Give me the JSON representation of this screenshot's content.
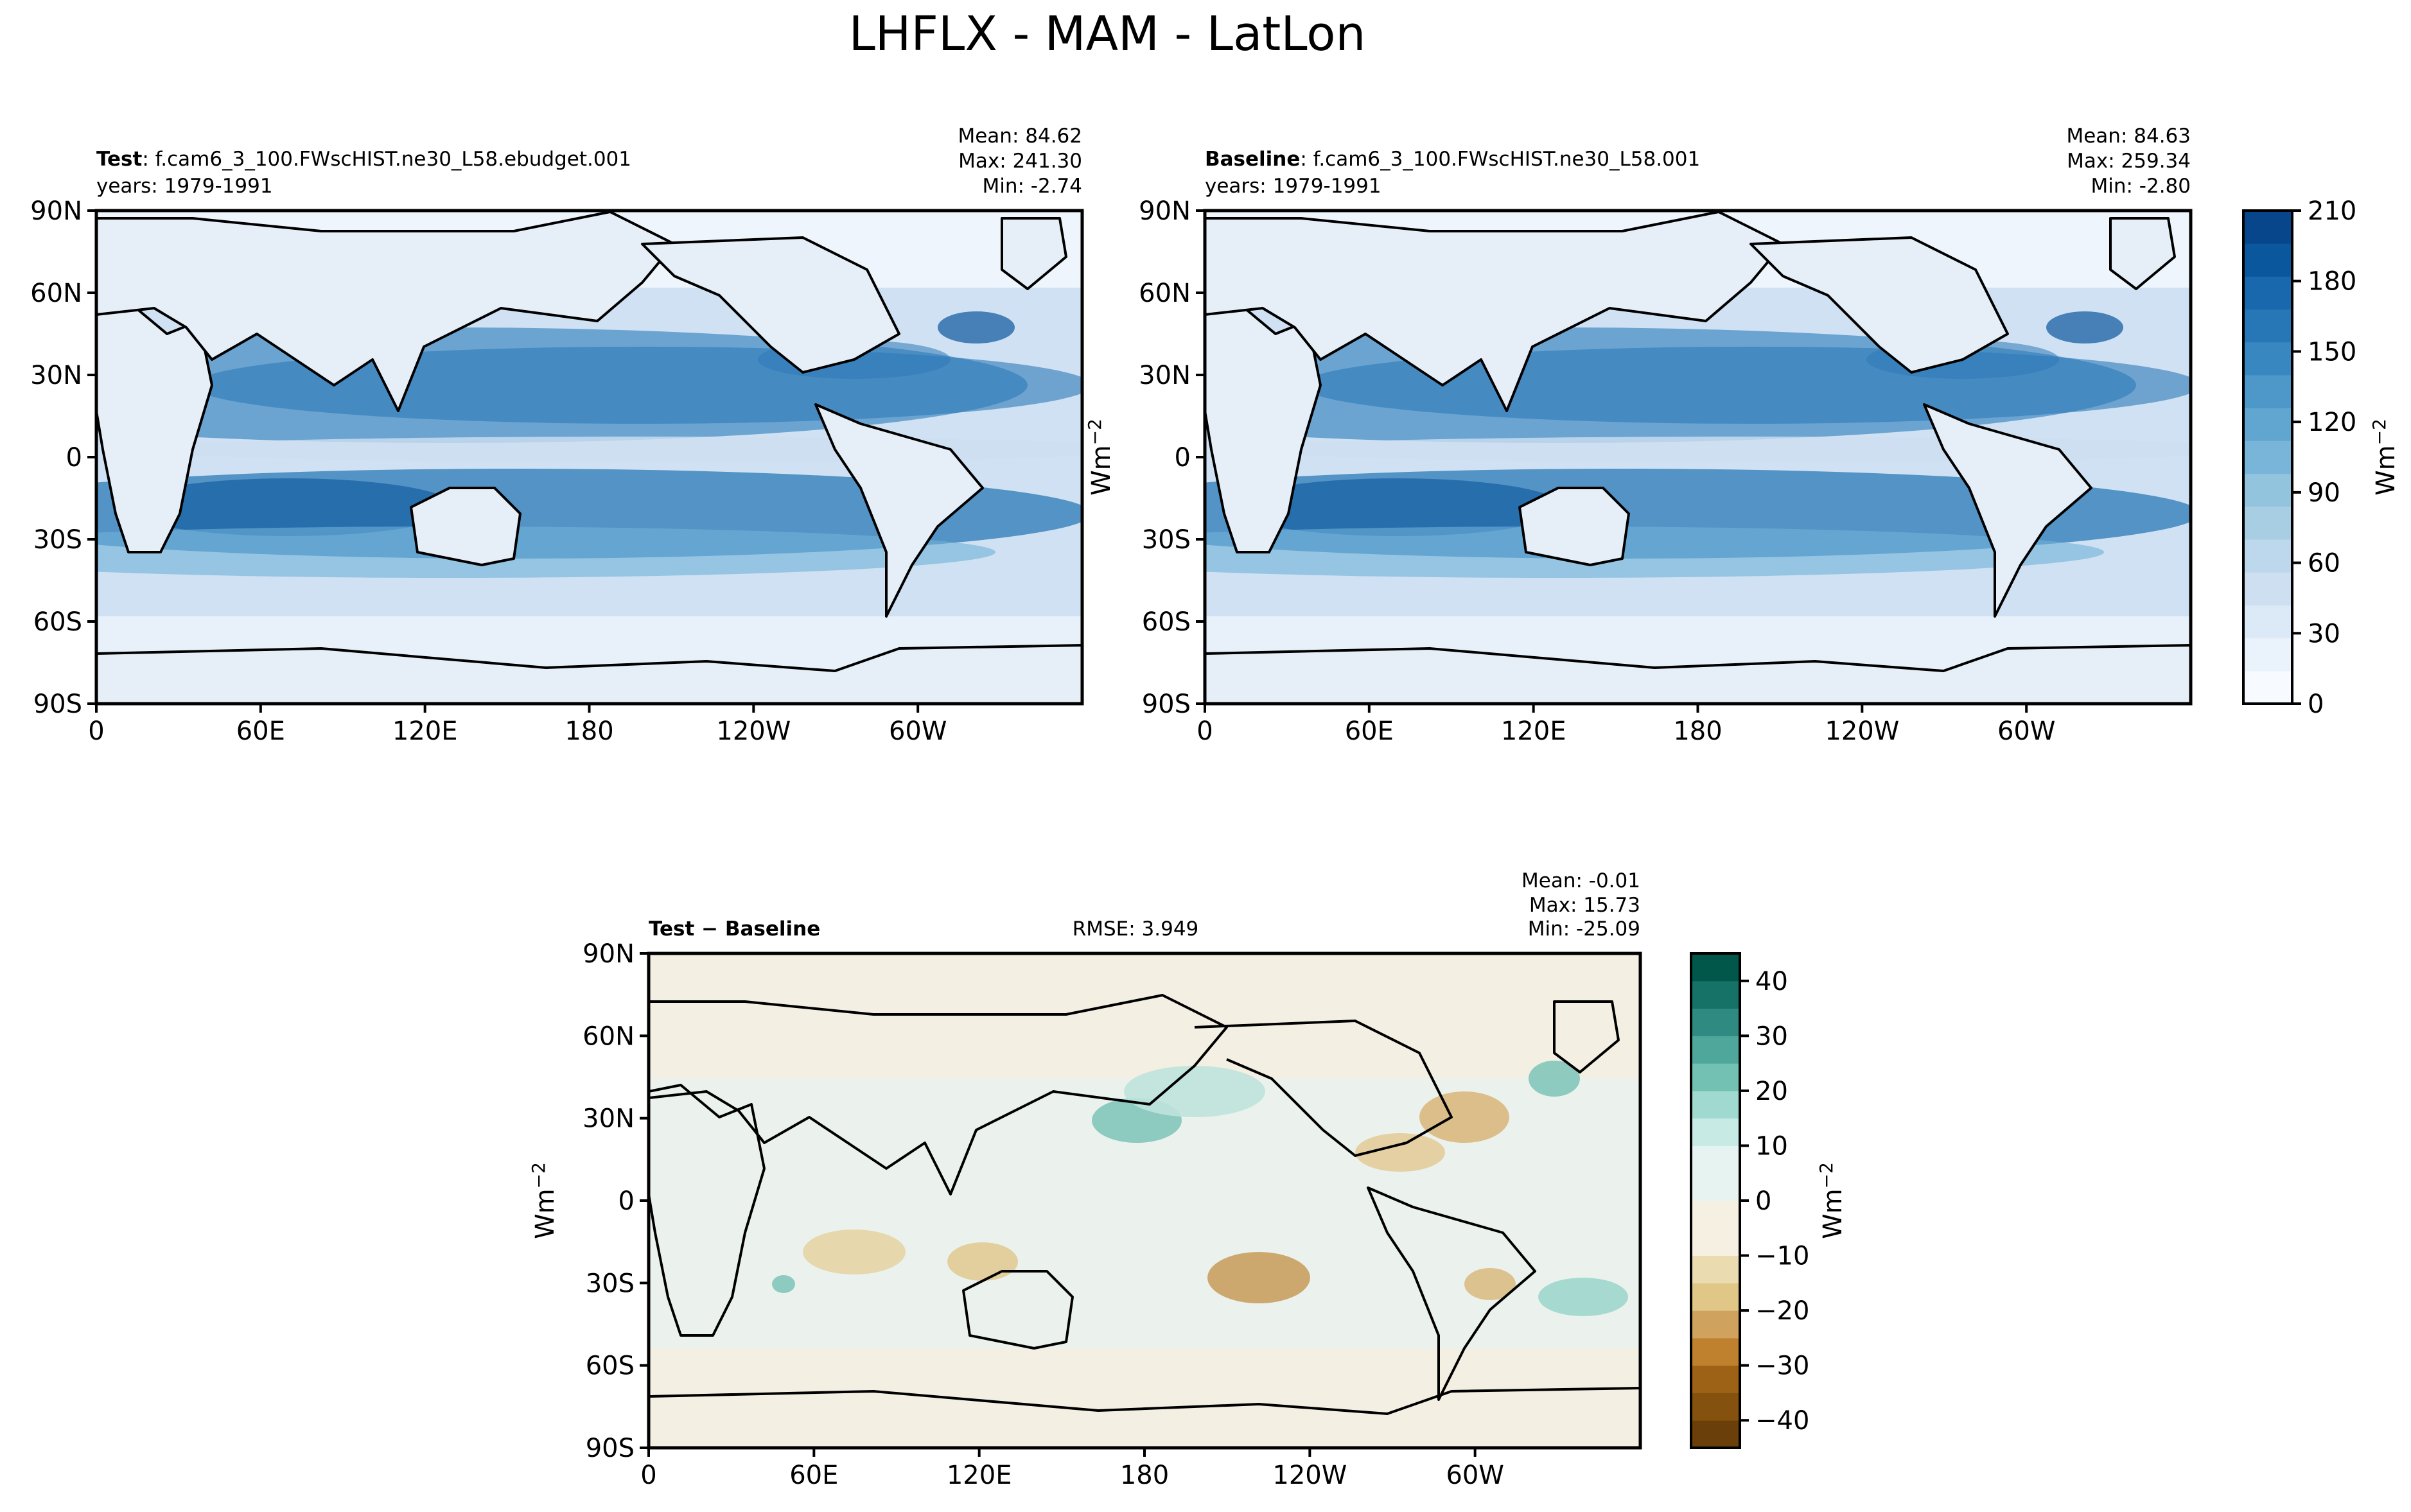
{
  "title": "LHFLX - MAM - LatLon",
  "lon_ticks": [
    "0",
    "60E",
    "120E",
    "180",
    "120W",
    "60W"
  ],
  "lat_ticks": [
    "90N",
    "60N",
    "30N",
    "0",
    "30S",
    "60S",
    "90S"
  ],
  "colors": {
    "blues": [
      "#f7fbff",
      "#eaf2fb",
      "#dce9f6",
      "#cddff1",
      "#bdd7ec",
      "#a8cee4",
      "#92c4de",
      "#79b5d9",
      "#61a6d1",
      "#4d97c9",
      "#3987c0",
      "#2777b6",
      "#1967ad",
      "#0b579e",
      "#08468b"
    ],
    "diff_negative": [
      "#f5f0e1",
      "#eadbb1",
      "#e0c787",
      "#cfa25e",
      "#bf812d",
      "#9e6216",
      "#84510f",
      "#6a3f09"
    ],
    "diff_positive": [
      "#e6f3f1",
      "#c7eae5",
      "#9fd9cf",
      "#73c1b3",
      "#4fa79b",
      "#2f8a81",
      "#167166",
      "#01584a"
    ]
  },
  "chart_data": [
    {
      "type": "heatmap",
      "panel": "test",
      "label_bold": "Test",
      "label_rest": ": f.cam6_3_100.FWscHIST.ne30_L58.ebudget.001",
      "years": "years: 1979-1991",
      "stats": {
        "mean": "Mean: 84.62",
        "max": "Max: 241.30",
        "min": "Min: -2.74"
      },
      "x": "longitude 0 to 360",
      "y": "latitude -90 to 90",
      "xlim": [
        0,
        360
      ],
      "ylim": [
        -90,
        90
      ],
      "field": "latent heat flux (Wm-2)"
    },
    {
      "type": "heatmap",
      "panel": "baseline",
      "label_bold": "Baseline",
      "label_rest": ": f.cam6_3_100.FWscHIST.ne30_L58.001",
      "years": "years: 1979-1991",
      "stats": {
        "mean": "Mean: 84.63",
        "max": "Max: 259.34",
        "min": "Min: -2.80"
      },
      "xlim": [
        0,
        360
      ],
      "ylim": [
        -90,
        90
      ],
      "ylabel": "Wm",
      "ylabel_sup": "−2",
      "colorbar": {
        "ticks": [
          "0",
          "30",
          "60",
          "90",
          "120",
          "150",
          "180",
          "210"
        ],
        "range": [
          0,
          210
        ],
        "label": "Wm",
        "label_sup": "−2"
      }
    },
    {
      "type": "heatmap",
      "panel": "difference",
      "label_bold": "Test − Baseline",
      "rmse": "RMSE: 3.949",
      "stats": {
        "mean": "Mean: -0.01",
        "max": "Max: 15.73",
        "min": "Min: -25.09"
      },
      "xlim": [
        0,
        360
      ],
      "ylim": [
        -90,
        90
      ],
      "ylabel": "Wm",
      "ylabel_sup": "−2",
      "colorbar": {
        "ticks": [
          "40",
          "30",
          "20",
          "10",
          "0",
          "−10",
          "−20",
          "−30",
          "−40"
        ],
        "range": [
          -45,
          45
        ],
        "label": "Wm",
        "label_sup": "−2"
      }
    }
  ]
}
